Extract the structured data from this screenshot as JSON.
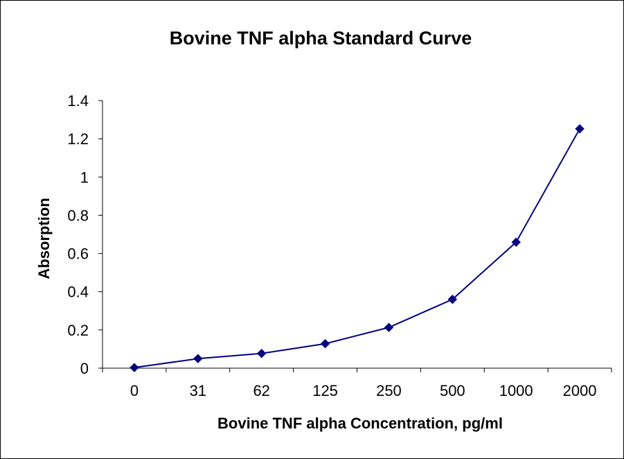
{
  "chart_data": {
    "type": "line",
    "title": "Bovine TNF alpha Standard Curve",
    "xlabel": "Bovine TNF alpha Concentration, pg/ml",
    "ylabel": "Absorption",
    "categories": [
      "0",
      "31",
      "62",
      "125",
      "250",
      "500",
      "1000",
      "2000"
    ],
    "series": [
      {
        "values": [
          0.003,
          0.05,
          0.077,
          0.128,
          0.213,
          0.36,
          0.659,
          1.252
        ],
        "color": "#000080",
        "marker": "diamond"
      }
    ],
    "ylim": [
      0,
      1.4
    ],
    "yticks": [
      "0",
      "0.2",
      "0.4",
      "0.6",
      "0.8",
      "1",
      "1.2",
      "1.4"
    ],
    "grid": false,
    "legend": "none"
  }
}
